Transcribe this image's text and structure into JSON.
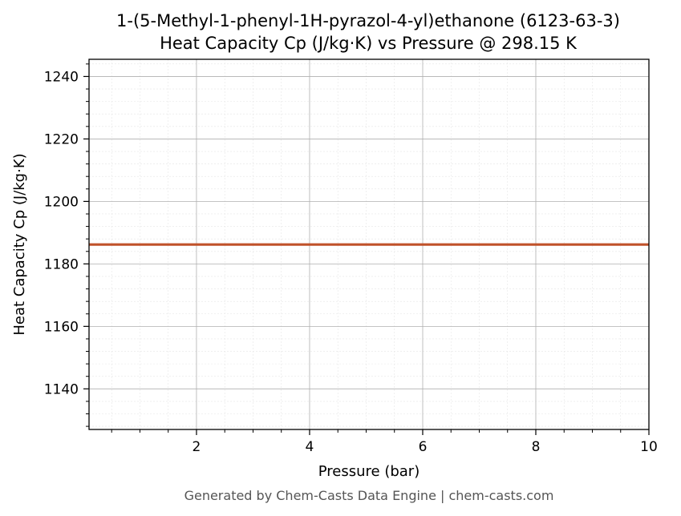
{
  "chart_data": {
    "type": "line",
    "title": "1-(5-Methyl-1-phenyl-1H-pyrazol-4-yl)ethanone (6123-63-3)",
    "subtitle": "Heat Capacity Cp (J/kg·K) vs Pressure @ 298.15 K",
    "xlabel": "Pressure (bar)",
    "ylabel": "Heat Capacity Cp (J/kg·K)",
    "xlim": [
      0.1,
      10
    ],
    "ylim": [
      1127,
      1245.5
    ],
    "xticks": [
      2,
      4,
      6,
      8,
      10
    ],
    "yticks": [
      1140,
      1160,
      1180,
      1200,
      1220,
      1240
    ],
    "grid": true,
    "minor_grid": true,
    "line_color": "#c0522a",
    "series": [
      {
        "x": [
          0.1,
          10
        ],
        "y": [
          1186.2,
          1186.2
        ]
      }
    ]
  },
  "footer": "Generated by Chem-Casts Data Engine | chem-casts.com"
}
